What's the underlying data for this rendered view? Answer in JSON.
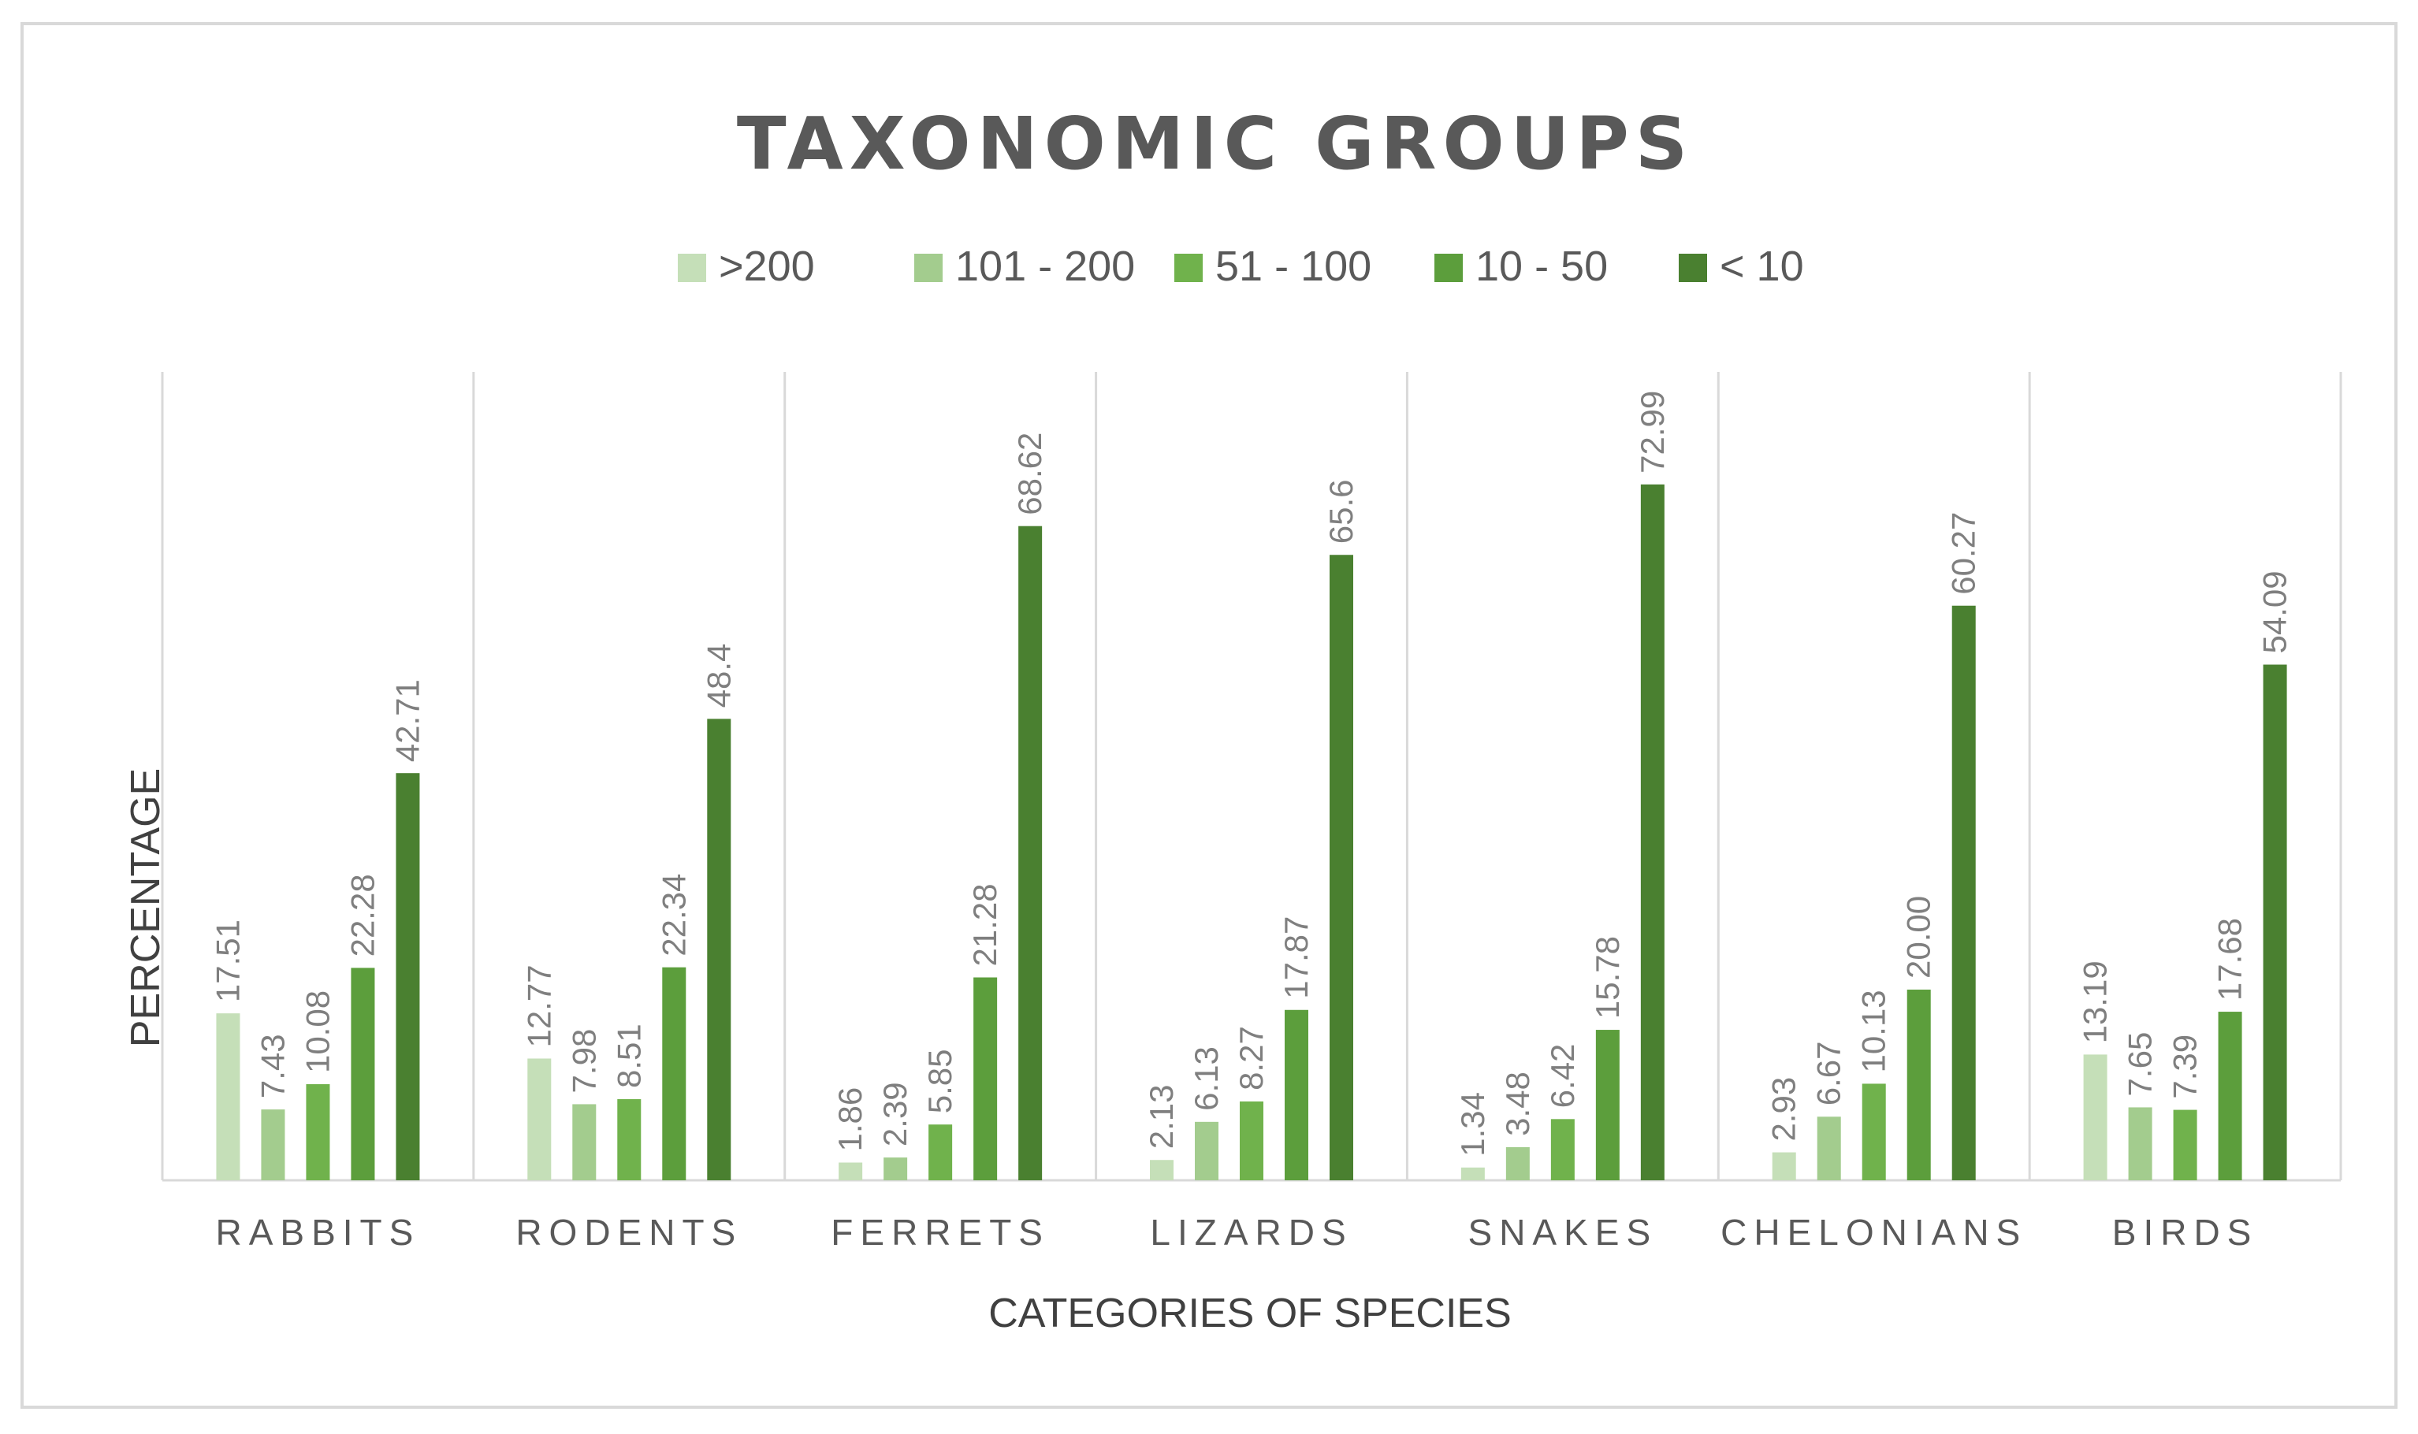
{
  "chart_data": {
    "type": "bar",
    "title": "TAXONOMIC GROUPS",
    "xlabel": "CATEGORIES OF SPECIES",
    "ylabel": "PERCENTAGE",
    "categories": [
      "RABBITS",
      "RODENTS",
      "FERRETS",
      "LIZARDS",
      "SNAKES",
      "CHELONIANS",
      "BIRDS"
    ],
    "series": [
      {
        "name": ">200",
        "color": "#c5dfb8",
        "values": [
          17.51,
          12.77,
          1.86,
          2.13,
          1.34,
          2.93,
          13.19
        ],
        "labels": [
          "17.51",
          "12.77",
          "1.86",
          "2.13",
          "1.34",
          "2.93",
          "13.19"
        ]
      },
      {
        "name": "101 - 200",
        "color": "#a3cc8e",
        "values": [
          7.43,
          7.98,
          2.39,
          6.13,
          3.48,
          6.67,
          7.65
        ],
        "labels": [
          "7.43",
          "7.98",
          "2.39",
          "6.13",
          "3.48",
          "6.67",
          "7.65"
        ]
      },
      {
        "name": "51 - 100",
        "color": "#70b24c",
        "values": [
          10.08,
          8.51,
          5.85,
          8.27,
          6.42,
          10.13,
          7.39
        ],
        "labels": [
          "10.08",
          "8.51",
          "5.85",
          "8.27",
          "6.42",
          "10.13",
          "7.39"
        ]
      },
      {
        "name": "10 - 50",
        "color": "#5c9e3c",
        "values": [
          22.28,
          22.34,
          21.28,
          17.87,
          15.78,
          20.0,
          17.68
        ],
        "labels": [
          "22.28",
          "22.34",
          "21.28",
          "17.87",
          "15.78",
          "20.00",
          "17.68"
        ]
      },
      {
        "name": "< 10",
        "color": "#4a8030",
        "values": [
          42.71,
          48.4,
          68.62,
          65.6,
          72.99,
          60.27,
          54.09
        ],
        "labels": [
          "42.71",
          "48.4",
          "68.62",
          "65.6",
          "72.99",
          "60.27",
          "54.09"
        ]
      }
    ],
    "ylim": [
      0,
      100
    ],
    "grid": false,
    "legend": "top",
    "data_labels": true
  }
}
